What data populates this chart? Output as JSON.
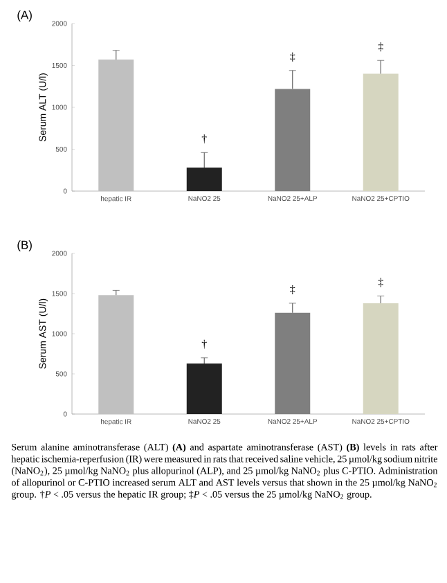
{
  "chart_data": [
    {
      "type": "bar",
      "title": "(A)",
      "ylabel": "Serum ALT (U/l)",
      "categories": [
        "hepatic IR",
        "NaNO2 25",
        "NaNO2 25+ALP",
        "NaNO2 25+CPTIO"
      ],
      "values": [
        1570,
        280,
        1220,
        1400
      ],
      "errors": [
        [
          1570,
          1680
        ],
        [
          280,
          460
        ],
        [
          1220,
          1440
        ],
        [
          1400,
          1560
        ]
      ],
      "colors": [
        "#c0c0c0",
        "#222222",
        "#7f7f7f",
        "#d6d6c0"
      ],
      "ylim": [
        0,
        2000
      ],
      "yticks": [
        0,
        500,
        1000,
        1500,
        2000
      ],
      "grid": false,
      "annotations": [
        {
          "text": "†",
          "x": "NaNO2 25",
          "y": 460
        },
        {
          "text": "‡",
          "x": "NaNO2 25+ALP",
          "y": 1440
        },
        {
          "text": "‡",
          "x": "NaNO2 25+CPTIO",
          "y": 1560
        }
      ]
    },
    {
      "type": "bar",
      "title": "(B)",
      "ylabel": "Serum AST (U/l)",
      "categories": [
        "hepatic IR",
        "NaNO2 25",
        "NaNO2 25+ALP",
        "NaNO2 25+CPTIO"
      ],
      "values": [
        1480,
        630,
        1260,
        1380
      ],
      "errors": [
        [
          1480,
          1540
        ],
        [
          630,
          700
        ],
        [
          1260,
          1380
        ],
        [
          1380,
          1470
        ]
      ],
      "colors": [
        "#c0c0c0",
        "#222222",
        "#7f7f7f",
        "#d6d6c0"
      ],
      "ylim": [
        0,
        2000
      ],
      "yticks": [
        0,
        500,
        1000,
        1500,
        2000
      ],
      "grid": false,
      "annotations": [
        {
          "text": "†",
          "x": "NaNO2 25",
          "y": 700
        },
        {
          "text": "‡",
          "x": "NaNO2 25+ALP",
          "y": 1380
        },
        {
          "text": "‡",
          "x": "NaNO2 25+CPTIO",
          "y": 1470
        },
        "Serum alanine aminotransferase (ALT) **(A)** and aspartate aminotransferase (AST) **(B)** levels in rats after hepatic ischemia-reperfusion (IR) were measured in rats that received saline vehicle, 25 µmol/kg sodium nitrite (NaNO$_{2}$), 25 µmol/kg NaNO$_{2}$ plus allopurinol (ALP), and 25 µmol/kg NaNO$_{2}$ plus C-PTIO. Administration of allopurinol or C-PTIO increased serum ALT and AST levels versus that shown in the 25 µmol/kg NaNO$_{2}$ group. †*P* < .05 versus the hepatic IR group; ‡*P* < .05 versus the 25 µmol/kg NaNO$_{2}$ group."
      ]
    }
  ]
}
